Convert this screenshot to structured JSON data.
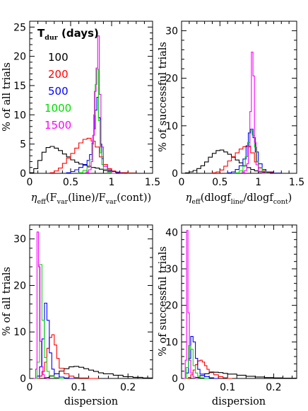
{
  "chart_data": [
    {
      "type": "line",
      "xlabel": "η_eff(F_var(line)/F_var(cont))",
      "xlabel_parts": {
        "eta": "η",
        "eff": "eff",
        "open": "(F",
        "var1": "var",
        "mid": "(line)/F",
        "var2": "var",
        "close": "(cont))"
      },
      "ylabel": "% of all trials",
      "xlim": [
        0,
        1.5
      ],
      "ylim": [
        0,
        26
      ],
      "xticks": [
        0,
        0.5,
        1,
        1.5
      ],
      "xticklabels": [
        "0",
        "0.5",
        "1",
        "1.5"
      ],
      "yticks": [
        0,
        5,
        10,
        15,
        20,
        25
      ],
      "yticklabels": [
        "0",
        "5",
        "10",
        "15",
        "20",
        "25"
      ],
      "legend": {
        "title": "T",
        "title_sub": "dur",
        "title_units": " (days)",
        "labels": [
          "100",
          "200",
          "500",
          "1000",
          "1500"
        ]
      },
      "series": [
        {
          "name": "100",
          "color": "#000000",
          "x": [
            0,
            0.05,
            0.1,
            0.15,
            0.2,
            0.25,
            0.3,
            0.35,
            0.4,
            0.45,
            0.5,
            0.55,
            0.6,
            0.65,
            0.7,
            0.75,
            0.8,
            0.85,
            0.9,
            0.95,
            1.0,
            1.05,
            1.1,
            1.2,
            1.3
          ],
          "y": [
            0.1,
            0.8,
            2.2,
            3.6,
            4.4,
            4.6,
            4.3,
            3.9,
            3.3,
            2.8,
            2.3,
            1.9,
            1.6,
            1.4,
            1.2,
            1.0,
            0.9,
            0.7,
            0.5,
            0.4,
            0.3,
            0.2,
            0.1,
            0.05,
            0
          ]
        },
        {
          "name": "200",
          "color": "#ff0000",
          "x": [
            0.25,
            0.3,
            0.35,
            0.4,
            0.45,
            0.5,
            0.55,
            0.6,
            0.65,
            0.7,
            0.75,
            0.8,
            0.85,
            0.9,
            0.95,
            1.0,
            1.05,
            1.1,
            1.2
          ],
          "y": [
            0.1,
            0.4,
            0.9,
            1.7,
            2.6,
            3.4,
            4.3,
            5.2,
            5.8,
            6.0,
            5.5,
            4.5,
            2.8,
            1.5,
            0.8,
            0.4,
            0.2,
            0.1,
            0
          ]
        },
        {
          "name": "500",
          "color": "#0000ff",
          "x": [
            0.45,
            0.5,
            0.55,
            0.6,
            0.65,
            0.7,
            0.73,
            0.76,
            0.78,
            0.8,
            0.82,
            0.84,
            0.86,
            0.88,
            0.9,
            0.95,
            1.0,
            1.05,
            1.1
          ],
          "y": [
            0.1,
            0.3,
            0.6,
            1.0,
            1.5,
            2.2,
            3.2,
            5.2,
            7.6,
            10.8,
            13.0,
            9.5,
            5.0,
            2.5,
            1.2,
            0.6,
            0.3,
            0.1,
            0
          ]
        },
        {
          "name": "1000",
          "color": "#00dd00",
          "x": [
            0.6,
            0.65,
            0.7,
            0.73,
            0.76,
            0.78,
            0.8,
            0.82,
            0.84,
            0.86,
            0.88,
            0.9,
            0.95,
            1.0
          ],
          "y": [
            0.1,
            0.5,
            1.0,
            2.3,
            5.0,
            10.0,
            15.2,
            17.8,
            9.0,
            3.5,
            1.5,
            0.7,
            0.2,
            0
          ]
        },
        {
          "name": "1500",
          "color": "#ff00ff",
          "x": [
            0.68,
            0.72,
            0.75,
            0.77,
            0.79,
            0.81,
            0.83,
            0.85,
            0.87,
            0.9,
            0.95,
            1.0
          ],
          "y": [
            0.1,
            0.6,
            2.0,
            6.5,
            14.0,
            18.0,
            23.5,
            13.5,
            4.5,
            1.2,
            0.3,
            0
          ]
        }
      ]
    },
    {
      "type": "line",
      "xlabel": "η_eff(dlogf_line/dlogf_cont)",
      "xlabel_parts": {
        "eta": "η",
        "eff": "eff",
        "open": "(dlogf",
        "line": "line",
        "mid": "/dlogf",
        "cont": "cont",
        "close": ")"
      },
      "ylabel": "% of successful trials",
      "xlim": [
        0,
        1.5
      ],
      "ylim": [
        0,
        32
      ],
      "xticks": [
        0,
        0.5,
        1,
        1.5
      ],
      "xticklabels": [
        "0",
        "0.5",
        "1",
        "1.5"
      ],
      "yticks": [
        0,
        10,
        20,
        30
      ],
      "yticklabels": [
        "0",
        "10",
        "20",
        "30"
      ],
      "series": [
        {
          "name": "100",
          "color": "#000000",
          "x": [
            0,
            0.05,
            0.1,
            0.15,
            0.2,
            0.25,
            0.3,
            0.35,
            0.4,
            0.45,
            0.5,
            0.55,
            0.6,
            0.65,
            0.7,
            0.75,
            0.8,
            0.85,
            0.9,
            0.95,
            1.0,
            1.05,
            1.1,
            1.2,
            1.3
          ],
          "y": [
            0,
            0.1,
            0.3,
            0.6,
            1.0,
            1.6,
            2.4,
            3.4,
            4.2,
            4.8,
            4.9,
            4.5,
            4.0,
            3.4,
            2.8,
            2.2,
            1.6,
            1.2,
            0.8,
            0.5,
            0.3,
            0.2,
            0.1,
            0.05,
            0
          ]
        },
        {
          "name": "200",
          "color": "#ff0000",
          "x": [
            0.4,
            0.45,
            0.5,
            0.55,
            0.6,
            0.65,
            0.7,
            0.75,
            0.8,
            0.85,
            0.9,
            0.95,
            1.0,
            1.05,
            1.1,
            1.2
          ],
          "y": [
            0.1,
            0.3,
            0.7,
            1.5,
            2.6,
            3.5,
            4.3,
            5.1,
            5.6,
            5.7,
            4.3,
            2.4,
            1.1,
            0.5,
            0.2,
            0
          ]
        },
        {
          "name": "500",
          "color": "#0000ff",
          "x": [
            0.6,
            0.65,
            0.7,
            0.75,
            0.8,
            0.84,
            0.87,
            0.9,
            0.93,
            0.96,
            1.0,
            1.05,
            1.1,
            1.2
          ],
          "y": [
            0.1,
            0.3,
            0.8,
            1.6,
            3.0,
            5.8,
            8.5,
            9.3,
            7.5,
            4.5,
            2.0,
            0.8,
            0.3,
            0
          ]
        },
        {
          "name": "1000",
          "color": "#00dd00",
          "x": [
            0.7,
            0.75,
            0.8,
            0.83,
            0.86,
            0.89,
            0.92,
            0.95,
            0.98,
            1.0,
            1.05,
            1.1
          ],
          "y": [
            0.1,
            0.5,
            1.5,
            3.5,
            6.5,
            9.0,
            8.0,
            5.5,
            2.5,
            1.2,
            0.4,
            0
          ]
        },
        {
          "name": "1500",
          "color": "#ff00ff",
          "x": [
            0.78,
            0.82,
            0.85,
            0.87,
            0.89,
            0.91,
            0.93,
            0.95,
            0.97,
            1.0,
            1.05
          ],
          "y": [
            0.1,
            0.6,
            2.0,
            5.5,
            13.0,
            25.5,
            20.5,
            6.5,
            1.8,
            0.4,
            0
          ]
        }
      ]
    },
    {
      "type": "line",
      "xlabel": "dispersion",
      "ylabel": "% of all trials",
      "xlim": [
        0,
        0.25
      ],
      "ylim": [
        0,
        33
      ],
      "xticks": [
        0,
        0.1,
        0.2
      ],
      "xticklabels": [
        "0",
        "0.1",
        "0.2"
      ],
      "yticks": [
        0,
        10,
        20,
        30
      ],
      "yticklabels": [
        "0",
        "10",
        "20",
        "30"
      ],
      "series": [
        {
          "name": "100",
          "color": "#000000",
          "x": [
            0.02,
            0.03,
            0.04,
            0.05,
            0.06,
            0.07,
            0.08,
            0.09,
            0.1,
            0.11,
            0.12,
            0.13,
            0.14,
            0.15,
            0.17,
            0.19,
            0.21,
            0.23,
            0.25
          ],
          "y": [
            0,
            0.2,
            0.5,
            1.0,
            1.6,
            2.1,
            2.5,
            2.6,
            2.4,
            2.1,
            1.8,
            1.5,
            1.2,
            1.0,
            0.7,
            0.4,
            0.25,
            0.1,
            0.05
          ]
        },
        {
          "name": "200",
          "color": "#ff0000",
          "x": [
            0.015,
            0.02,
            0.025,
            0.03,
            0.035,
            0.04,
            0.045,
            0.05,
            0.055,
            0.06,
            0.07,
            0.08,
            0.09,
            0.1,
            0.12
          ],
          "y": [
            0,
            0.5,
            1.5,
            3.5,
            6.5,
            8.8,
            9.4,
            7.2,
            4.3,
            2.2,
            1.0,
            0.5,
            0.2,
            0.1,
            0
          ]
        },
        {
          "name": "500",
          "color": "#0000ff",
          "x": [
            0.01,
            0.015,
            0.02,
            0.025,
            0.03,
            0.035,
            0.04,
            0.045,
            0.05,
            0.06,
            0.07,
            0.08
          ],
          "y": [
            0,
            0.5,
            2.5,
            8.5,
            16.2,
            12.5,
            5.5,
            2.0,
            1.0,
            0.3,
            0.1,
            0
          ]
        },
        {
          "name": "1000",
          "color": "#00dd00",
          "x": [
            0.01,
            0.015,
            0.02,
            0.025,
            0.03,
            0.035,
            0.04,
            0.05,
            0.06
          ],
          "y": [
            0,
            3.5,
            24.5,
            12.5,
            4.5,
            1.5,
            0.6,
            0.2,
            0
          ]
        },
        {
          "name": "1500",
          "color": "#ff00ff",
          "x": [
            0.008,
            0.012,
            0.015,
            0.018,
            0.021,
            0.024,
            0.027,
            0.03,
            0.035
          ],
          "y": [
            0,
            2.0,
            31.5,
            24.0,
            8.0,
            2.5,
            0.8,
            0.2,
            0
          ]
        }
      ]
    },
    {
      "type": "line",
      "xlabel": "dispersion",
      "ylabel": "% of successful trials",
      "xlim": [
        0,
        0.25
      ],
      "ylim": [
        0,
        42
      ],
      "xticks": [
        0,
        0.1,
        0.2
      ],
      "xticklabels": [
        "0",
        "0.1",
        "0.2"
      ],
      "yticks": [
        0,
        10,
        20,
        30,
        40
      ],
      "yticklabels": [
        "0",
        "10",
        "20",
        "30",
        "40"
      ],
      "series": [
        {
          "name": "100",
          "color": "#000000",
          "x": [
            0.02,
            0.03,
            0.04,
            0.05,
            0.06,
            0.07,
            0.08,
            0.09,
            0.1,
            0.12,
            0.14,
            0.16,
            0.18,
            0.2,
            0.22,
            0.25
          ],
          "y": [
            0,
            0.3,
            0.8,
            1.3,
            1.6,
            1.7,
            1.6,
            1.4,
            1.2,
            0.9,
            0.6,
            0.4,
            0.25,
            0.15,
            0.1,
            0.05
          ]
        },
        {
          "name": "200",
          "color": "#ff0000",
          "x": [
            0.01,
            0.015,
            0.02,
            0.025,
            0.03,
            0.035,
            0.04,
            0.045,
            0.05,
            0.055,
            0.06,
            0.07,
            0.08,
            0.09,
            0.1
          ],
          "y": [
            0,
            0.3,
            1.0,
            2.3,
            3.8,
            4.8,
            5.0,
            4.5,
            3.5,
            2.5,
            1.8,
            1.0,
            0.5,
            0.2,
            0
          ]
        },
        {
          "name": "500",
          "color": "#0000ff",
          "x": [
            0.005,
            0.01,
            0.015,
            0.02,
            0.025,
            0.03,
            0.035,
            0.04,
            0.05,
            0.06,
            0.07
          ],
          "y": [
            0,
            1.5,
            5.5,
            11.5,
            10.0,
            5.5,
            2.5,
            1.2,
            0.5,
            0.2,
            0
          ]
        },
        {
          "name": "1000",
          "color": "#00dd00",
          "x": [
            0.005,
            0.01,
            0.015,
            0.02,
            0.025,
            0.03,
            0.035,
            0.04,
            0.05
          ],
          "y": [
            0,
            3.0,
            9.0,
            8.0,
            3.5,
            1.5,
            0.6,
            0.2,
            0
          ]
        },
        {
          "name": "1500",
          "color": "#ff00ff",
          "x": [
            0.005,
            0.008,
            0.011,
            0.014,
            0.017,
            0.02,
            0.025,
            0.03
          ],
          "y": [
            0,
            5.0,
            40.5,
            18.0,
            5.0,
            1.5,
            0.4,
            0
          ]
        }
      ]
    }
  ]
}
